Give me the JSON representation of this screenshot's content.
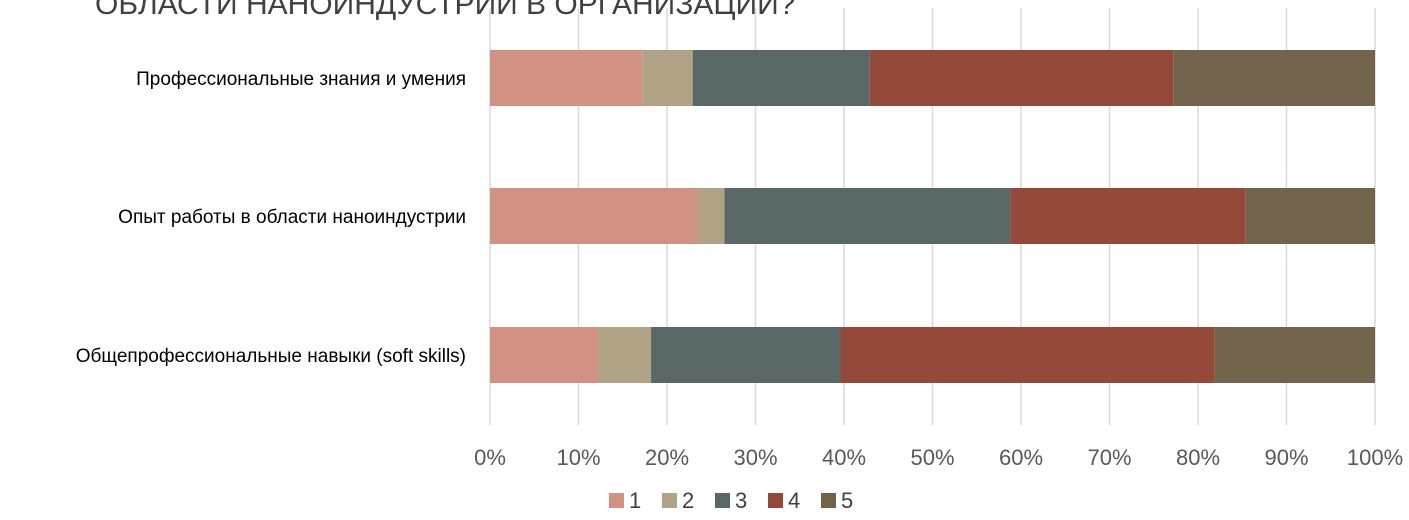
{
  "chart_data": {
    "type": "bar",
    "orientation": "horizontal",
    "stacked": "percent",
    "title": "ОБЛАСТИ НАНОИНДУСТРИИ В ОРГАНИЗАЦИИ?",
    "categories": [
      "Профессиональные знания и умения",
      "Опыт работы в области наноиндустрии",
      "Общепрофессиональные навыки (soft skills)"
    ],
    "series": [
      {
        "name": "1",
        "color": "#d19283",
        "values": [
          17.2,
          23.5,
          12.2
        ]
      },
      {
        "name": "2",
        "color": "#b0a284",
        "values": [
          5.7,
          3.0,
          6.0
        ]
      },
      {
        "name": "3",
        "color": "#596767",
        "values": [
          20.0,
          32.3,
          21.4
        ]
      },
      {
        "name": "4",
        "color": "#934a3a",
        "values": [
          34.3,
          26.6,
          42.3
        ]
      },
      {
        "name": "5",
        "color": "#72644c",
        "values": [
          22.8,
          14.6,
          18.1
        ]
      }
    ],
    "xlim": [
      0,
      100
    ],
    "x_ticks": [
      "0%",
      "10%",
      "20%",
      "30%",
      "40%",
      "50%",
      "60%",
      "70%",
      "80%",
      "90%",
      "100%"
    ],
    "grid": true,
    "legend_position": "bottom"
  }
}
